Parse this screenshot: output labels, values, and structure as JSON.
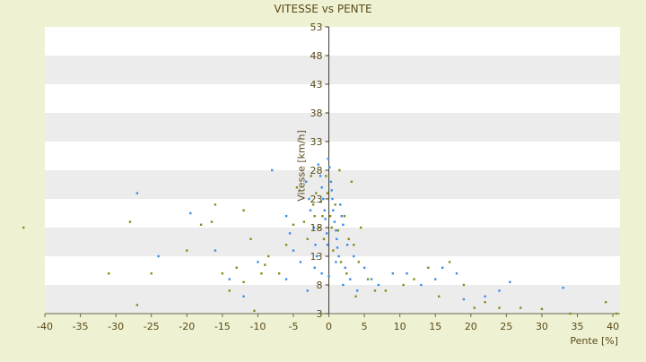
{
  "chart_data": {
    "type": "scatter",
    "title": "VITESSE vs PENTE",
    "xlabel": "Pente [%]",
    "ylabel": "Vitesse [km/h]",
    "xlim": [
      -40,
      41
    ],
    "ylim": [
      3,
      53
    ],
    "x_ticks": [
      -40,
      -35,
      -30,
      -25,
      -20,
      -15,
      -10,
      -5,
      0,
      5,
      10,
      15,
      20,
      25,
      30,
      35,
      40
    ],
    "y_ticks": [
      3,
      8,
      13,
      18,
      23,
      28,
      33,
      38,
      43,
      48,
      53
    ],
    "y_tick_labels": [
      "3",
      "8",
      "13",
      "18",
      "23",
      "28",
      "33",
      "38",
      "43",
      "48",
      "53"
    ],
    "grid": "horizontal alternating bands",
    "legend": "none",
    "colors": {
      "background": "#eef2d2",
      "band_light": "#ffffff",
      "band_dark": "#ececec",
      "axis_text": "#5a4a1a",
      "series_a": "#3a8ee6",
      "series_b": "#8a8a1a"
    },
    "series": [
      {
        "points": [
          [
            -27,
            24
          ],
          [
            -19.5,
            20.5
          ],
          [
            -24,
            13
          ],
          [
            -16,
            14
          ],
          [
            -8,
            28
          ],
          [
            -6,
            20
          ],
          [
            -5.5,
            17
          ],
          [
            -5,
            14
          ],
          [
            -4,
            12
          ],
          [
            -3.2,
            26
          ],
          [
            -2.8,
            23
          ],
          [
            -2.6,
            21
          ],
          [
            -2.1,
            18
          ],
          [
            -1.9,
            15
          ],
          [
            -1.7,
            13
          ],
          [
            -1.5,
            29
          ],
          [
            -1.2,
            27
          ],
          [
            -1,
            25
          ],
          [
            -0.8,
            23
          ],
          [
            -0.6,
            21
          ],
          [
            -0.5,
            19.5
          ],
          [
            -0.3,
            17
          ],
          [
            -0.2,
            15
          ],
          [
            -0.1,
            30
          ],
          [
            0.1,
            28.5
          ],
          [
            0.3,
            26
          ],
          [
            0.4,
            24.5
          ],
          [
            0.5,
            23
          ],
          [
            0.6,
            21
          ],
          [
            0.8,
            19
          ],
          [
            1,
            17.5
          ],
          [
            1.1,
            16
          ],
          [
            1.2,
            14.5
          ],
          [
            1.4,
            13
          ],
          [
            1.6,
            22
          ],
          [
            1.8,
            20
          ],
          [
            2,
            18.5
          ],
          [
            2.3,
            11
          ],
          [
            2.6,
            15
          ],
          [
            3,
            9
          ],
          [
            3.5,
            13
          ],
          [
            4,
            7
          ],
          [
            5,
            11
          ],
          [
            6,
            9
          ],
          [
            9,
            10
          ],
          [
            11,
            10
          ],
          [
            13,
            8
          ],
          [
            15,
            9
          ],
          [
            16,
            11
          ],
          [
            18,
            10
          ],
          [
            22,
            6
          ],
          [
            24,
            7
          ],
          [
            25.5,
            8.5
          ],
          [
            33,
            7.5
          ],
          [
            -12,
            6
          ],
          [
            -10,
            12
          ],
          [
            -14,
            9
          ],
          [
            -3,
            7
          ],
          [
            -1,
            10
          ],
          [
            0,
            9.5
          ],
          [
            1,
            12
          ],
          [
            2,
            8
          ],
          [
            -2,
            11
          ],
          [
            -6,
            9
          ],
          [
            7,
            8
          ],
          [
            19,
            5.5
          ]
        ]
      },
      {
        "points": [
          [
            -43,
            18
          ],
          [
            -31,
            10
          ],
          [
            -28,
            19
          ],
          [
            -27,
            4.5
          ],
          [
            -25,
            10
          ],
          [
            -20,
            14
          ],
          [
            -18,
            18.5
          ],
          [
            -16.5,
            19
          ],
          [
            -16,
            22
          ],
          [
            -15,
            10
          ],
          [
            -14,
            7
          ],
          [
            -13,
            11
          ],
          [
            -12,
            8.5
          ],
          [
            -12,
            21
          ],
          [
            -11,
            16
          ],
          [
            -10.5,
            3.5
          ],
          [
            -9.5,
            10
          ],
          [
            -9,
            11.5
          ],
          [
            -8.5,
            13
          ],
          [
            -7,
            10
          ],
          [
            -6,
            15
          ],
          [
            -5,
            18.5
          ],
          [
            -4.5,
            25
          ],
          [
            -3.5,
            19
          ],
          [
            -3,
            16
          ],
          [
            -2.5,
            27
          ],
          [
            -2.2,
            22
          ],
          [
            -2,
            20
          ],
          [
            -1.8,
            24
          ],
          [
            -1.4,
            18
          ],
          [
            -1.1,
            22.5
          ],
          [
            -0.9,
            20
          ],
          [
            -0.7,
            16
          ],
          [
            -0.4,
            27
          ],
          [
            -0.2,
            24
          ],
          [
            0.2,
            20
          ],
          [
            0.4,
            18
          ],
          [
            0.6,
            14
          ],
          [
            0.9,
            22
          ],
          [
            1.3,
            17.5
          ],
          [
            1.5,
            28
          ],
          [
            1.7,
            12
          ],
          [
            2.2,
            20
          ],
          [
            2.5,
            10
          ],
          [
            2.8,
            16
          ],
          [
            3.2,
            26
          ],
          [
            3.5,
            15
          ],
          [
            3.8,
            6
          ],
          [
            4.2,
            12
          ],
          [
            4.5,
            18
          ],
          [
            5.5,
            9
          ],
          [
            6.5,
            7
          ],
          [
            8,
            7
          ],
          [
            10.5,
            8
          ],
          [
            12,
            9
          ],
          [
            14,
            11
          ],
          [
            15.5,
            6
          ],
          [
            17,
            12
          ],
          [
            19,
            8
          ],
          [
            20.5,
            4
          ],
          [
            22,
            5
          ],
          [
            24,
            4
          ],
          [
            27,
            4
          ],
          [
            30,
            3.8
          ],
          [
            34,
            3
          ],
          [
            39,
            5
          ],
          [
            40.5,
            3
          ]
        ]
      }
    ]
  }
}
